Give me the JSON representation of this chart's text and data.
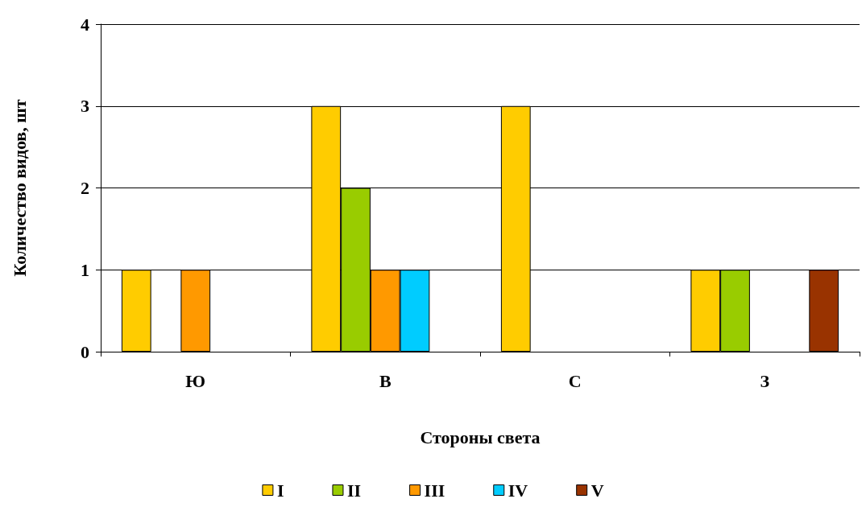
{
  "chart_data": {
    "type": "bar",
    "xlabel": "Стороны света",
    "ylabel": "Количество видов, шт",
    "categories": [
      "Ю",
      "В",
      "С",
      "З"
    ],
    "series": [
      {
        "name": "I",
        "color": "#ffcc00",
        "values": [
          1,
          3,
          3,
          1
        ]
      },
      {
        "name": "II",
        "color": "#99cc00",
        "values": [
          0,
          2,
          0,
          1
        ]
      },
      {
        "name": "III",
        "color": "#ff9900",
        "values": [
          1,
          1,
          0,
          0
        ]
      },
      {
        "name": "IV",
        "color": "#00ccff",
        "values": [
          0,
          1,
          0,
          0
        ]
      },
      {
        "name": "V",
        "color": "#993300",
        "values": [
          0,
          0,
          0,
          1
        ]
      }
    ],
    "ylim": [
      0,
      4
    ],
    "yticks": [
      0,
      1,
      2,
      3,
      4
    ],
    "grid": "y",
    "legend": "bottom"
  }
}
